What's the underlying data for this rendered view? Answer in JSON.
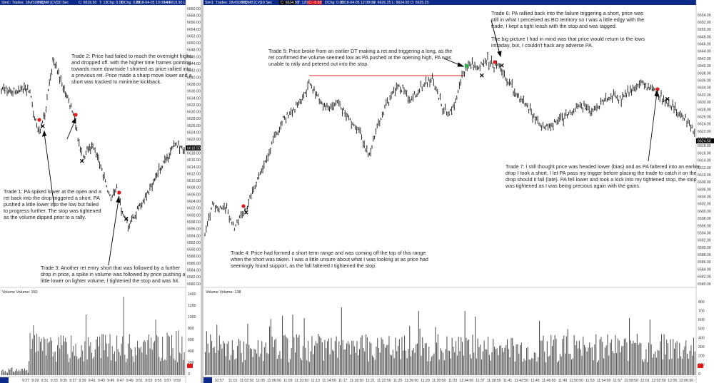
{
  "left_chart": {
    "header": {
      "symbol": "Sim1: Trades: 18vIS08:00",
      "instrument": "NQM8 [CV]",
      "interval": "10 Sec",
      "bar_info": "C: 6618.50",
      "tick": "T: 13",
      "change": "Chg: 0.00",
      "dchange": "DChg: 0.00",
      "datetime": "2018-04-05 10:00:40",
      "hl": "H: 6619.50 L: 6617..."
    },
    "price_labels": [
      "6660.00",
      "6658.00",
      "6656.00",
      "6654.00",
      "6652.00",
      "6650.00",
      "6648.00",
      "6646.00",
      "6644.00",
      "6642.00",
      "6640.00",
      "6638.00",
      "6636.00",
      "6634.00",
      "6632.00",
      "6630.00",
      "6628.00",
      "6626.00",
      "6624.00",
      "6622.00",
      "6620.00",
      "6618.00",
      "6616.00",
      "6614.00",
      "6612.00",
      "6610.00",
      "6608.00",
      "6606.00",
      "6604.00",
      "6602.00",
      "6600.00",
      "6598.00",
      "6596.00",
      "6594.00",
      "6592.00",
      "6590.00",
      "6588.00",
      "6586.00",
      "6584.00",
      "6582.00",
      "6580.00"
    ],
    "current_price": "6618.50",
    "volume_label": "Volume  Volume: 150",
    "volume_axis": [
      "1400",
      "1200",
      "1000",
      "800",
      "600",
      "400",
      "200",
      "0"
    ],
    "time_labels": [
      "9:27",
      "9:29",
      "9:31",
      "9:33",
      "9:35",
      "9:37",
      "9:39",
      "9:41",
      "9:43",
      "9:45",
      "9:47",
      "9:49",
      "9:51",
      "9:53",
      "9:55",
      "9:57",
      "9:59"
    ],
    "annotations": {
      "trade1": [
        "Trade 1:  PA spiked lower at the open and a",
        "ret back into the drop triggered a short, PA",
        "pushed a little lower into the low but failed",
        "to progress further.  The stop was tightened",
        "as the volume dipped prior to a rally."
      ],
      "trade2": [
        "Trade 2:  Price had failed to reach the overnight highs",
        "and dropped off.  with the higher time frames pointing",
        "towards more downside I shorted as price rallied into",
        "a previous ret.  Price made a sharp move lower and a",
        "short was tracked to minimise kickback."
      ],
      "trade3": [
        "Trade 3:  Another ret entry short that was followed by a further",
        "drop in price, a spike in volume was followed by price pushing a",
        "little lower on lighter volume, I tightened the stop and was hit."
      ]
    }
  },
  "right_chart": {
    "header": {
      "symbol": "Sim1: Trades: 18vIS08:00",
      "instrument": "NQM8 [CV]",
      "interval": "10 Sec",
      "bar_info": "C: 6624.50",
      "tick": "T: 120",
      "change": "C: -0.50",
      "dchange": "DChg: 0.00",
      "datetime": "2018-04-05 12:08:00",
      "hl": "H: 6626.25 L: 6624.50 O: 6625.25"
    },
    "price_labels": [
      "6654.00",
      "6652.00",
      "6650.00",
      "6648.00",
      "6646.00",
      "6644.00",
      "6642.00",
      "6640.00",
      "6638.00",
      "6636.00",
      "6634.00",
      "6632.00",
      "6630.00",
      "6628.00",
      "6626.00",
      "6624.00",
      "6622.00",
      "6620.00",
      "6618.00",
      "6616.00",
      "6614.00",
      "6612.00",
      "6610.00",
      "6608.00",
      "6606.00",
      "6604.00",
      "6602.00",
      "6600.00",
      "6598.00",
      "6596.00",
      "6594.00",
      "6592.00",
      "6590.00",
      "6588.00",
      "6586.00",
      "6584.00",
      "6582.00",
      "6580.00"
    ],
    "current_price": "6624.50",
    "volume_label": "Volume  Volume: 138",
    "volume_axis": [
      "800",
      "700",
      "600",
      "500",
      "400",
      "300",
      "200",
      "100",
      "0"
    ],
    "time_labels": [
      "10:57",
      "11:01",
      "11:02:50",
      "11:05",
      "11:06:50",
      "11:09",
      "11:10:50",
      "11:13",
      "11:14:50",
      "11:17",
      "11:18:50",
      "11:21",
      "11:22:50",
      "11:25",
      "11:26:50",
      "11:29",
      "11:30:50",
      "11:33",
      "11:34:50",
      "11:37",
      "11:38:50",
      "11:41",
      "11:42:50",
      "11:45",
      "11:46:50",
      "11:49",
      "11:50:50",
      "11:53",
      "11:54:50",
      "11:57",
      "11:58:50",
      "12:01",
      "12:02:50",
      "12:05",
      "12:06:50"
    ],
    "annotations": {
      "trade4": [
        "Trade 4:  Price had formed a short term range and was coming off the top of this range",
        "when the short was taken.  I was a little unsure about what I was looking at as price had",
        "seemingly found support, as the fall faltered I tightened the stop."
      ],
      "trade5": [
        "Trade 5:  Price broke from an earlier DT making a ret and triggering a long, as the",
        "ret confirmed the volume seemed low as PA pushed at the opening high, PA was",
        "unable to rally and petered out into the stop."
      ],
      "trade6": [
        "Trade 6:  PA rallied back into the failure triggering a short, price was",
        "still in what I perceived as BO territory so I was a little edgy with the",
        "trade, I kept a tight leash with the stop and was tagged.",
        "",
        "The big picture I had in mind was that price would return to the lows",
        "intraday, but, I couldn't hack any adverse PA."
      ],
      "trade7": [
        "Trade 7:  I still thought price was headed lower (bias) and as PA faltered into an earlier",
        "drop I took a short, I let PA pass my trigger before placing the trade to catch it on the",
        "drop should it fail (late).  PA fell lower and took a kick into my tightened stop, the stop",
        "was tightened as I was being precious again with the gains."
      ]
    }
  },
  "chart_data": [
    {
      "type": "candlestick",
      "title": "",
      "x": [
        "9:27",
        "9:29",
        "9:31",
        "9:33",
        "9:35",
        "9:37",
        "9:39",
        "9:41",
        "9:43",
        "9:45",
        "9:47",
        "9:49",
        "9:51",
        "9:53",
        "9:55",
        "9:57",
        "9:59"
      ],
      "close": [
        6638,
        6637,
        6628,
        6626,
        6641,
        6633,
        6625,
        6618,
        6615,
        6608,
        6602,
        6597,
        6612,
        6608,
        6610,
        6616,
        6619
      ],
      "ylim": [
        6580,
        6660
      ]
    },
    {
      "type": "candlestick",
      "title": "",
      "x": [
        "10:57",
        "11:01",
        "11:05",
        "11:09",
        "11:13",
        "11:17",
        "11:21",
        "11:25",
        "11:29",
        "11:33",
        "11:37",
        "11:41",
        "11:45",
        "11:49",
        "11:53",
        "11:57",
        "12:01",
        "12:05"
      ],
      "close": [
        6604,
        6600,
        6620,
        6635,
        6636,
        6628,
        6624,
        6634,
        6636,
        6628,
        6641,
        6638,
        6628,
        6632,
        6632,
        6630,
        6636,
        6628
      ],
      "ylim": [
        6580,
        6654
      ],
      "reference_line": 6639.75
    }
  ],
  "colors": {
    "header_bg": "#0b2a8a",
    "current_price_bg": "#000000",
    "entry_marker": "#e01a1a",
    "long_entry_marker": "#2fb34a",
    "ref_line": "#e02020",
    "volume_bar": "#555555",
    "bar": "#1a1a1a"
  }
}
